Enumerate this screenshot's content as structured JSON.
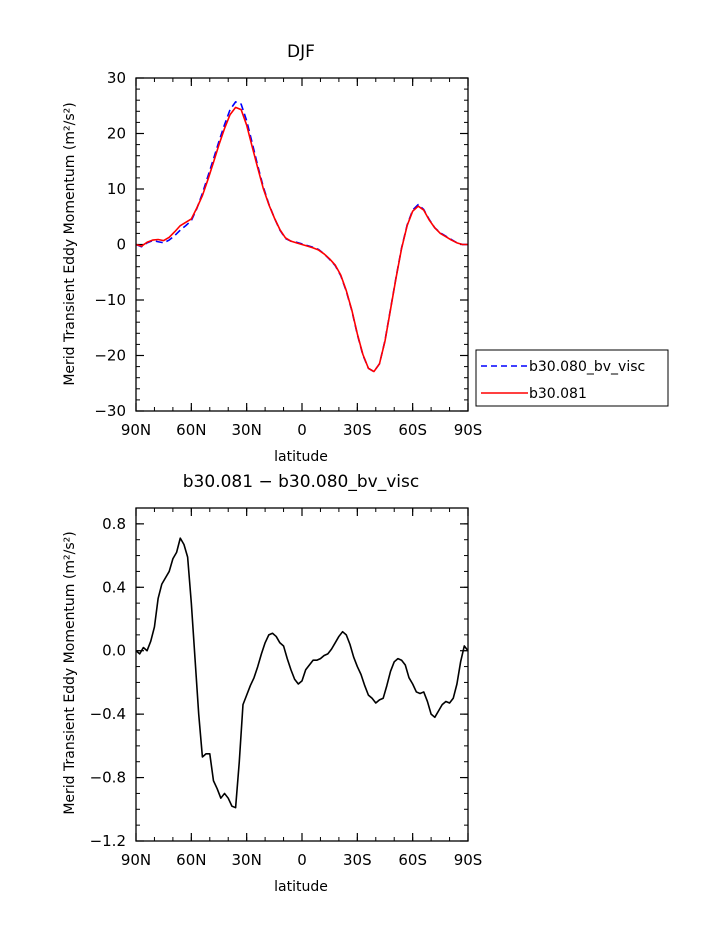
{
  "chart_data": [
    {
      "type": "line",
      "title": "DJF",
      "xlabel": "latitude",
      "ylabel": "Merid Transient Eddy Momentum (m²/s²)",
      "xlim": [
        -90,
        90
      ],
      "ylim": [
        -30,
        30
      ],
      "x_ticks": [
        {
          "value": -90,
          "label": "90N"
        },
        {
          "value": -60,
          "label": "60N"
        },
        {
          "value": -30,
          "label": "30N"
        },
        {
          "value": 0,
          "label": "0"
        },
        {
          "value": 30,
          "label": "30S"
        },
        {
          "value": 60,
          "label": "60S"
        },
        {
          "value": 90,
          "label": "90S"
        }
      ],
      "y_ticks": [
        {
          "value": 30,
          "label": "30"
        },
        {
          "value": 20,
          "label": "20"
        },
        {
          "value": 10,
          "label": "10"
        },
        {
          "value": 0,
          "label": "0"
        },
        {
          "value": -10,
          "label": "−10"
        },
        {
          "value": -20,
          "label": "−20"
        },
        {
          "value": -30,
          "label": "−30"
        }
      ],
      "legend": {
        "position": "right"
      },
      "series": [
        {
          "name": "b30.080_bv_visc",
          "color": "#0000ff",
          "dash": "dashed",
          "x": [
            -90,
            -87,
            -84,
            -81,
            -78,
            -75,
            -72,
            -69,
            -66,
            -63,
            -60,
            -57,
            -54,
            -51,
            -48,
            -45,
            -42,
            -39,
            -36,
            -33,
            -30,
            -27,
            -24,
            -21,
            -18,
            -15,
            -12,
            -9,
            -6,
            -3,
            0,
            3,
            6,
            9,
            12,
            15,
            18,
            21,
            24,
            27,
            30,
            33,
            36,
            39,
            42,
            45,
            48,
            51,
            54,
            57,
            60,
            63,
            66,
            69,
            72,
            75,
            78,
            81,
            84,
            87,
            90
          ],
          "y": [
            0.0,
            -0.4,
            0.3,
            0.7,
            0.5,
            0.3,
            0.8,
            1.6,
            2.6,
            3.4,
            4.3,
            6.5,
            9.2,
            12.3,
            15.4,
            18.6,
            21.6,
            24.3,
            25.7,
            25.3,
            22.3,
            18.3,
            14.2,
            10.4,
            7.3,
            4.8,
            2.6,
            1.1,
            0.6,
            0.4,
            0.1,
            -0.2,
            -0.5,
            -0.9,
            -1.7,
            -2.7,
            -3.8,
            -5.6,
            -8.4,
            -11.9,
            -16.2,
            -19.9,
            -22.3,
            -22.9,
            -21.5,
            -17.3,
            -11.6,
            -5.9,
            -0.6,
            3.5,
            6.2,
            7.2,
            6.3,
            4.5,
            3.0,
            2.1,
            1.5,
            0.9,
            0.3,
            0.0,
            0.0
          ]
        },
        {
          "name": "b30.081",
          "color": "#ff0000",
          "dash": "solid",
          "x": [
            -90,
            -87,
            -84,
            -81,
            -78,
            -75,
            -72,
            -69,
            -66,
            -63,
            -60,
            -57,
            -54,
            -51,
            -48,
            -45,
            -42,
            -39,
            -36,
            -33,
            -30,
            -27,
            -24,
            -21,
            -18,
            -15,
            -12,
            -9,
            -6,
            -3,
            0,
            3,
            6,
            9,
            12,
            15,
            18,
            21,
            24,
            27,
            30,
            33,
            36,
            39,
            42,
            45,
            48,
            51,
            54,
            57,
            60,
            63,
            66,
            69,
            72,
            75,
            78,
            81,
            84,
            87,
            90
          ],
          "y": [
            0.0,
            -0.3,
            0.4,
            0.8,
            0.9,
            0.7,
            1.3,
            2.3,
            3.4,
            4.0,
            4.6,
            6.6,
            8.8,
            11.7,
            14.8,
            18.0,
            20.9,
            23.4,
            24.7,
            24.3,
            21.5,
            17.6,
            13.8,
            10.1,
            7.2,
            4.8,
            2.7,
            1.2,
            0.6,
            0.3,
            0.0,
            -0.3,
            -0.6,
            -1.0,
            -1.7,
            -2.6,
            -3.7,
            -5.5,
            -8.3,
            -11.8,
            -16.1,
            -19.8,
            -22.3,
            -22.9,
            -21.5,
            -17.4,
            -11.7,
            -6.0,
            -0.7,
            3.4,
            6.0,
            6.9,
            6.2,
            4.4,
            3.0,
            2.0,
            1.4,
            0.8,
            0.3,
            0.0,
            0.0
          ]
        }
      ]
    },
    {
      "type": "line",
      "title": "b30.081 − b30.080_bv_visc",
      "xlabel": "latitude",
      "ylabel": "Merid Transient Eddy Momentum (m²/s²)",
      "xlim": [
        -90,
        90
      ],
      "ylim": [
        -1.2,
        0.9
      ],
      "x_ticks": [
        {
          "value": -90,
          "label": "90N"
        },
        {
          "value": -60,
          "label": "60N"
        },
        {
          "value": -30,
          "label": "30N"
        },
        {
          "value": 0,
          "label": "0"
        },
        {
          "value": 30,
          "label": "30S"
        },
        {
          "value": 60,
          "label": "60S"
        },
        {
          "value": 90,
          "label": "90S"
        }
      ],
      "y_ticks": [
        {
          "value": 0.8,
          "label": "0.8"
        },
        {
          "value": 0.4,
          "label": "0.4"
        },
        {
          "value": 0.0,
          "label": "0.0"
        },
        {
          "value": -0.4,
          "label": "−0.4"
        },
        {
          "value": -0.8,
          "label": "−0.8"
        },
        {
          "value": -1.2,
          "label": "−1.2"
        }
      ],
      "series": [
        {
          "color": "#000000",
          "dash": "solid",
          "x": [
            -90,
            -88,
            -86,
            -84,
            -82,
            -80,
            -78,
            -76,
            -74,
            -72,
            -70,
            -68,
            -66,
            -64,
            -62,
            -60,
            -58,
            -56,
            -54,
            -52,
            -50,
            -48,
            -46,
            -44,
            -42,
            -40,
            -38,
            -36,
            -34,
            -32,
            -30,
            -28,
            -26,
            -24,
            -22,
            -20,
            -18,
            -16,
            -14,
            -12,
            -10,
            -8,
            -6,
            -4,
            -2,
            0,
            2,
            4,
            6,
            8,
            10,
            12,
            14,
            16,
            18,
            20,
            22,
            24,
            26,
            28,
            30,
            32,
            34,
            36,
            38,
            40,
            42,
            44,
            46,
            48,
            50,
            52,
            54,
            56,
            58,
            60,
            62,
            64,
            66,
            68,
            70,
            72,
            74,
            76,
            78,
            80,
            82,
            84,
            86,
            88,
            90
          ],
          "y": [
            0.0,
            -0.02,
            0.02,
            0.0,
            0.06,
            0.15,
            0.33,
            0.42,
            0.46,
            0.5,
            0.58,
            0.62,
            0.71,
            0.67,
            0.59,
            0.3,
            -0.05,
            -0.4,
            -0.67,
            -0.65,
            -0.65,
            -0.82,
            -0.87,
            -0.93,
            -0.9,
            -0.93,
            -0.98,
            -0.99,
            -0.7,
            -0.34,
            -0.28,
            -0.22,
            -0.17,
            -0.1,
            -0.02,
            0.05,
            0.1,
            0.11,
            0.09,
            0.05,
            0.03,
            -0.05,
            -0.12,
            -0.18,
            -0.21,
            -0.19,
            -0.12,
            -0.09,
            -0.06,
            -0.06,
            -0.05,
            -0.03,
            -0.02,
            0.01,
            0.05,
            0.09,
            0.12,
            0.1,
            0.04,
            -0.04,
            -0.1,
            -0.15,
            -0.22,
            -0.28,
            -0.3,
            -0.33,
            -0.31,
            -0.3,
            -0.22,
            -0.13,
            -0.07,
            -0.05,
            -0.06,
            -0.09,
            -0.17,
            -0.21,
            -0.26,
            -0.27,
            -0.26,
            -0.32,
            -0.4,
            -0.42,
            -0.38,
            -0.34,
            -0.32,
            -0.33,
            -0.3,
            -0.21,
            -0.07,
            0.03,
            0.0
          ]
        }
      ]
    }
  ]
}
